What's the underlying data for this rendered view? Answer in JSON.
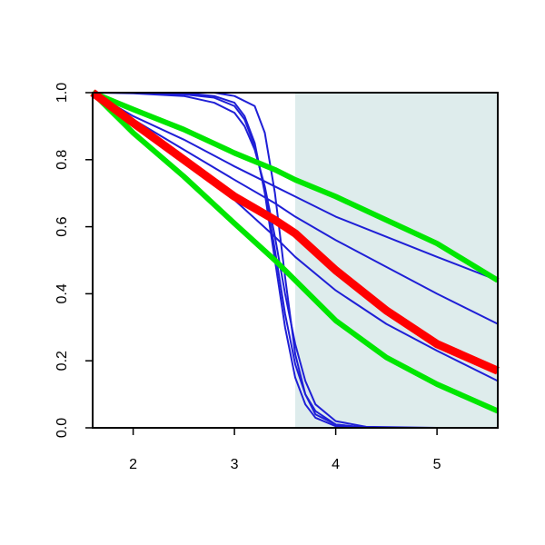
{
  "chart_data": {
    "type": "line",
    "title": "",
    "xlabel": "",
    "ylabel": "",
    "xlim": [
      1.6,
      5.6
    ],
    "ylim": [
      0.0,
      1.0
    ],
    "x_ticks": [
      2,
      3,
      4,
      5
    ],
    "y_ticks": [
      0.0,
      0.2,
      0.4,
      0.6,
      0.8,
      1.0
    ],
    "x_tick_labels": [
      "2",
      "3",
      "4",
      "5"
    ],
    "y_tick_labels": [
      "0.0",
      "0.2",
      "0.4",
      "0.6",
      "0.8",
      "1.0"
    ],
    "grid": false,
    "shaded_region": {
      "x_start": 3.6,
      "x_end": 5.6,
      "color": "#deecec"
    },
    "colors": {
      "blue": "#1f1fd6",
      "green": "#00e600",
      "red": "#ff0000",
      "axis": "#000000"
    },
    "series": [
      {
        "color": "blue",
        "x": [
          1.6,
          2.0,
          2.5,
          2.8,
          3.0,
          3.2,
          3.3,
          3.4,
          3.5,
          3.6,
          3.7,
          3.8,
          4.0,
          4.3,
          5.0,
          5.6
        ],
        "y": [
          1.0,
          1.0,
          1.0,
          1.0,
          0.99,
          0.96,
          0.88,
          0.7,
          0.45,
          0.22,
          0.1,
          0.04,
          0.01,
          0.0,
          0.0,
          0.0
        ]
      },
      {
        "color": "blue",
        "x": [
          1.6,
          2.0,
          2.5,
          2.8,
          3.0,
          3.1,
          3.2,
          3.3,
          3.4,
          3.5,
          3.6,
          3.7,
          3.8,
          4.0,
          4.3,
          5.0,
          5.6
        ],
        "y": [
          1.0,
          1.0,
          0.999,
          0.99,
          0.97,
          0.93,
          0.85,
          0.7,
          0.5,
          0.3,
          0.15,
          0.07,
          0.03,
          0.005,
          0.0,
          0.0,
          0.0
        ]
      },
      {
        "color": "blue",
        "x": [
          1.6,
          2.0,
          2.5,
          2.8,
          3.0,
          3.1,
          3.2,
          3.3,
          3.4,
          3.5,
          3.6,
          3.7,
          3.8,
          4.0,
          4.3,
          5.0,
          5.6
        ],
        "y": [
          1.0,
          1.0,
          0.995,
          0.985,
          0.96,
          0.92,
          0.84,
          0.71,
          0.53,
          0.34,
          0.19,
          0.1,
          0.05,
          0.01,
          0.0,
          0.0,
          0.0
        ]
      },
      {
        "color": "blue",
        "x": [
          1.6,
          2.0,
          2.5,
          2.8,
          3.0,
          3.1,
          3.2,
          3.3,
          3.4,
          3.5,
          3.6,
          3.7,
          3.8,
          4.0,
          4.3,
          5.0,
          5.6
        ],
        "y": [
          1.0,
          0.998,
          0.99,
          0.97,
          0.94,
          0.9,
          0.83,
          0.72,
          0.57,
          0.4,
          0.25,
          0.14,
          0.07,
          0.02,
          0.003,
          0.0,
          0.0
        ]
      },
      {
        "color": "blue",
        "x": [
          1.6,
          2.0,
          2.5,
          3.0,
          3.4,
          3.6,
          4.0,
          4.5,
          5.0,
          5.6
        ],
        "y": [
          1.0,
          0.93,
          0.86,
          0.78,
          0.72,
          0.69,
          0.63,
          0.57,
          0.51,
          0.44
        ]
      },
      {
        "color": "blue",
        "x": [
          1.6,
          2.0,
          2.5,
          3.0,
          3.4,
          3.6,
          4.0,
          4.5,
          5.0,
          5.6
        ],
        "y": [
          1.0,
          0.92,
          0.83,
          0.74,
          0.67,
          0.63,
          0.56,
          0.48,
          0.4,
          0.31
        ]
      },
      {
        "color": "blue",
        "x": [
          1.6,
          2.0,
          2.5,
          3.0,
          3.4,
          3.6,
          4.0,
          4.5,
          5.0,
          5.6
        ],
        "y": [
          1.0,
          0.9,
          0.8,
          0.68,
          0.57,
          0.51,
          0.41,
          0.31,
          0.23,
          0.14
        ]
      },
      {
        "color": "green",
        "x": [
          1.6,
          2.0,
          2.5,
          3.0,
          3.4,
          3.6,
          4.0,
          4.5,
          5.0,
          5.6
        ],
        "y": [
          1.0,
          0.95,
          0.89,
          0.82,
          0.77,
          0.74,
          0.69,
          0.62,
          0.55,
          0.44
        ]
      },
      {
        "color": "green",
        "x": [
          1.6,
          2.0,
          2.5,
          3.0,
          3.4,
          3.6,
          4.0,
          4.5,
          5.0,
          5.6
        ],
        "y": [
          1.0,
          0.88,
          0.75,
          0.61,
          0.5,
          0.44,
          0.32,
          0.21,
          0.13,
          0.05
        ]
      },
      {
        "color": "red",
        "x": [
          1.6,
          2.0,
          2.5,
          3.0,
          3.4,
          3.6,
          4.0,
          4.5,
          5.0,
          5.6
        ],
        "y": [
          1.0,
          0.91,
          0.8,
          0.69,
          0.62,
          0.58,
          0.47,
          0.35,
          0.25,
          0.17
        ]
      }
    ],
    "legend": null
  }
}
